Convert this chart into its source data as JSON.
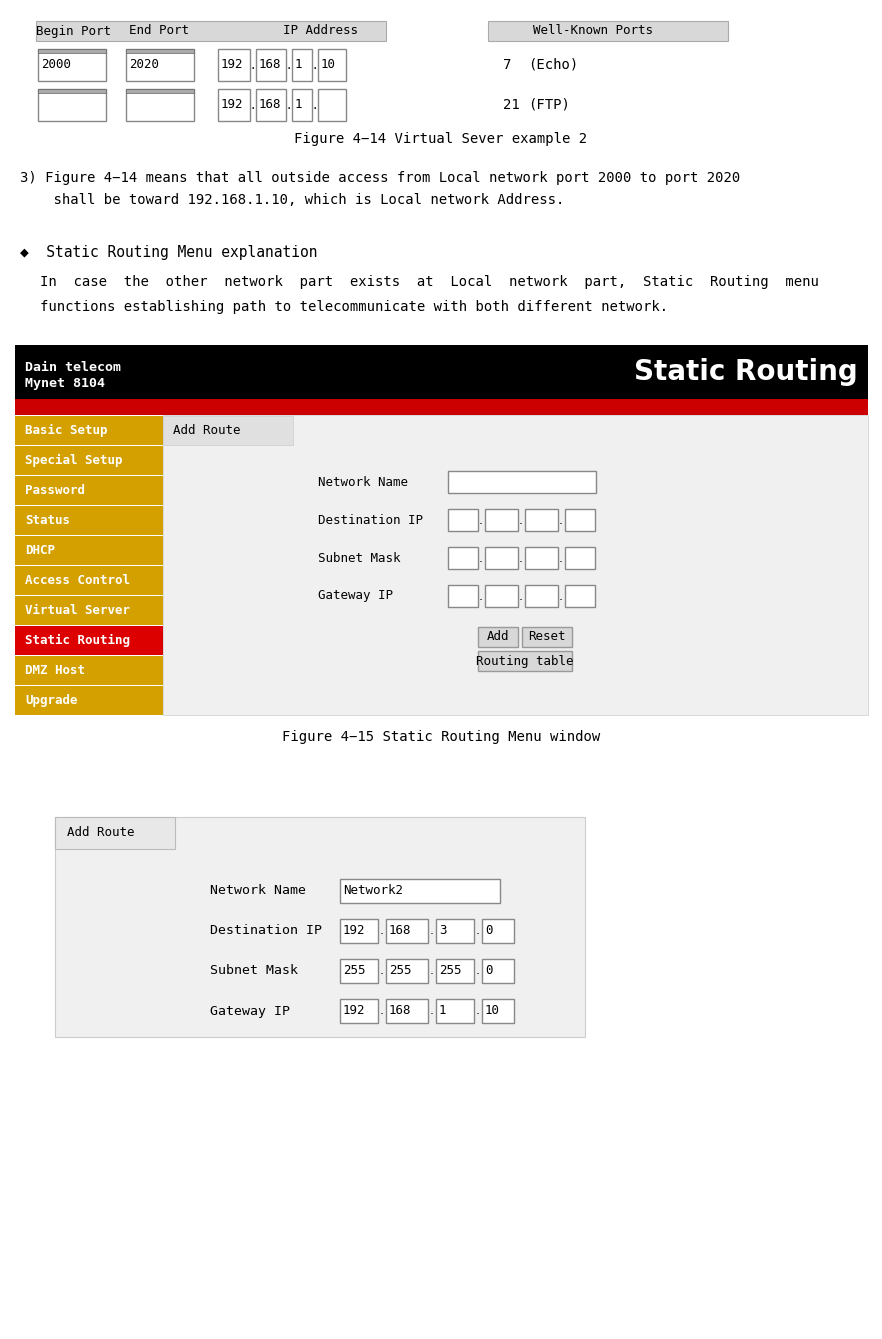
{
  "bg_color": "#ffffff",
  "section1": {
    "table_header": [
      "Begin Port",
      "End Port",
      "IP Address",
      "Well-Known Ports"
    ],
    "row1": {
      "begin": "2000",
      "end": "2020",
      "ip": [
        "192",
        "168",
        "1",
        "10"
      ],
      "wkp_num": "7",
      "wkp_name": "(Echo)"
    },
    "row2": {
      "begin": "",
      "end": "",
      "ip": [
        "192",
        "168",
        "1",
        ""
      ],
      "wkp_num": "21",
      "wkp_name": "(FTP)"
    },
    "caption": "Figure 4−14 Virtual Sever example 2"
  },
  "text1_line1": "3) Figure 4−14 means that all outside access from Local network port 2000 to port 2020",
  "text1_line2": "    shall be toward 192.168.1.10, which is Local network Address.",
  "section2_bullet": "◆  Static Routing Menu explanation",
  "section2_para1": "In  case  the  other  network  part  exists  at  Local  network  part,  Static  Routing  menu",
  "section2_para2": "functions establishing path to telecommunicate with both different network.",
  "router_ui": {
    "header_bg": "#000000",
    "red_bar_color": "#cc0000",
    "menu_bg": "#d4a000",
    "menu_items": [
      "Basic Setup",
      "Special Setup",
      "Password",
      "Status",
      "DHCP",
      "Access Control",
      "Virtual Server",
      "Static Routing",
      "DMZ Host",
      "Upgrade"
    ],
    "active_item": "Static Routing",
    "active_color": "#dd0000",
    "caption": "Figure 4−15 Static Routing Menu window"
  },
  "section3": {
    "fields": [
      "Network Name",
      "Destination IP",
      "Subnet Mask",
      "Gateway IP"
    ],
    "field_values": {
      "Network Name": "Network2",
      "Destination IP": [
        "192",
        "168",
        "3",
        "0"
      ],
      "Subnet Mask": [
        "255",
        "255",
        "255",
        "0"
      ],
      "Gateway IP": [
        "192",
        "168",
        "1",
        "10"
      ]
    }
  }
}
